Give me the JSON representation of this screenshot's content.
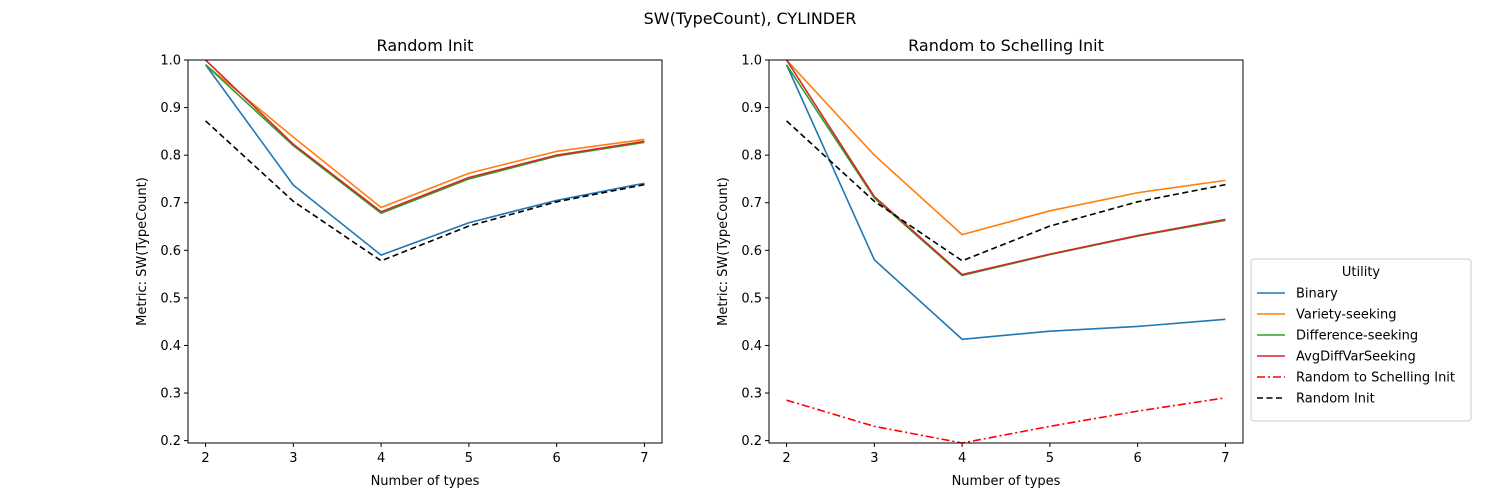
{
  "suptitle": "SW(TypeCount), CYLINDER",
  "legend": {
    "title": "Utility",
    "placement": "outside-right"
  },
  "chart_data": [
    {
      "type": "line",
      "title": "Random Init",
      "xlabel": "Number of types",
      "ylabel": "Metric: SW(TypeCount)",
      "x": [
        2,
        3,
        4,
        5,
        6,
        7
      ],
      "xlim": [
        1.8,
        7.2
      ],
      "ylim": [
        0.195,
        1.0
      ],
      "xticks": [
        "2",
        "3",
        "4",
        "5",
        "6",
        "7"
      ],
      "yticks": [
        "0.2",
        "0.3",
        "0.4",
        "0.5",
        "0.6",
        "0.7",
        "0.8",
        "0.9",
        "1.0"
      ],
      "grid": false,
      "series": [
        {
          "name": "Binary",
          "color": "#1f77b4",
          "style": "solid",
          "values": [
            0.99,
            0.737,
            0.59,
            0.658,
            0.705,
            0.741
          ]
        },
        {
          "name": "Variety-seeking",
          "color": "#ff7f0e",
          "style": "solid",
          "values": [
            0.99,
            0.838,
            0.69,
            0.762,
            0.808,
            0.833
          ]
        },
        {
          "name": "Difference-seeking",
          "color": "#2ca02c",
          "style": "solid",
          "values": [
            0.99,
            0.82,
            0.678,
            0.75,
            0.798,
            0.827
          ]
        },
        {
          "name": "AvgDiffVarSeeking",
          "color": "#d62728",
          "style": "solid",
          "values": [
            1.0,
            0.823,
            0.681,
            0.753,
            0.8,
            0.829
          ]
        },
        {
          "name": "Random Init",
          "color": "#000000",
          "style": "dashed",
          "values": [
            0.872,
            0.703,
            0.578,
            0.651,
            0.702,
            0.738
          ]
        }
      ]
    },
    {
      "type": "line",
      "title": "Random to Schelling Init",
      "xlabel": "Number of types",
      "ylabel": "Metric: SW(TypeCount)",
      "x": [
        2,
        3,
        4,
        5,
        6,
        7
      ],
      "xlim": [
        1.8,
        7.2
      ],
      "ylim": [
        0.195,
        1.0
      ],
      "xticks": [
        "2",
        "3",
        "4",
        "5",
        "6",
        "7"
      ],
      "yticks": [
        "0.2",
        "0.3",
        "0.4",
        "0.5",
        "0.6",
        "0.7",
        "0.8",
        "0.9",
        "1.0"
      ],
      "grid": false,
      "series": [
        {
          "name": "Binary",
          "color": "#1f77b4",
          "style": "solid",
          "values": [
            0.99,
            0.58,
            0.413,
            0.43,
            0.44,
            0.455
          ]
        },
        {
          "name": "Variety-seeking",
          "color": "#ff7f0e",
          "style": "solid",
          "values": [
            1.0,
            0.8,
            0.633,
            0.683,
            0.721,
            0.747
          ]
        },
        {
          "name": "Difference-seeking",
          "color": "#2ca02c",
          "style": "solid",
          "values": [
            0.99,
            0.71,
            0.547,
            0.591,
            0.63,
            0.663
          ]
        },
        {
          "name": "AvgDiffVarSeeking",
          "color": "#d62728",
          "style": "solid",
          "values": [
            1.0,
            0.713,
            0.549,
            0.592,
            0.631,
            0.665
          ]
        },
        {
          "name": "Random to Schelling Init",
          "color": "#ff0000",
          "style": "dashdot",
          "values": [
            0.285,
            0.23,
            0.195,
            0.23,
            0.262,
            0.29
          ]
        },
        {
          "name": "Random Init",
          "color": "#000000",
          "style": "dashed",
          "values": [
            0.872,
            0.703,
            0.578,
            0.651,
            0.702,
            0.738
          ]
        }
      ]
    }
  ]
}
